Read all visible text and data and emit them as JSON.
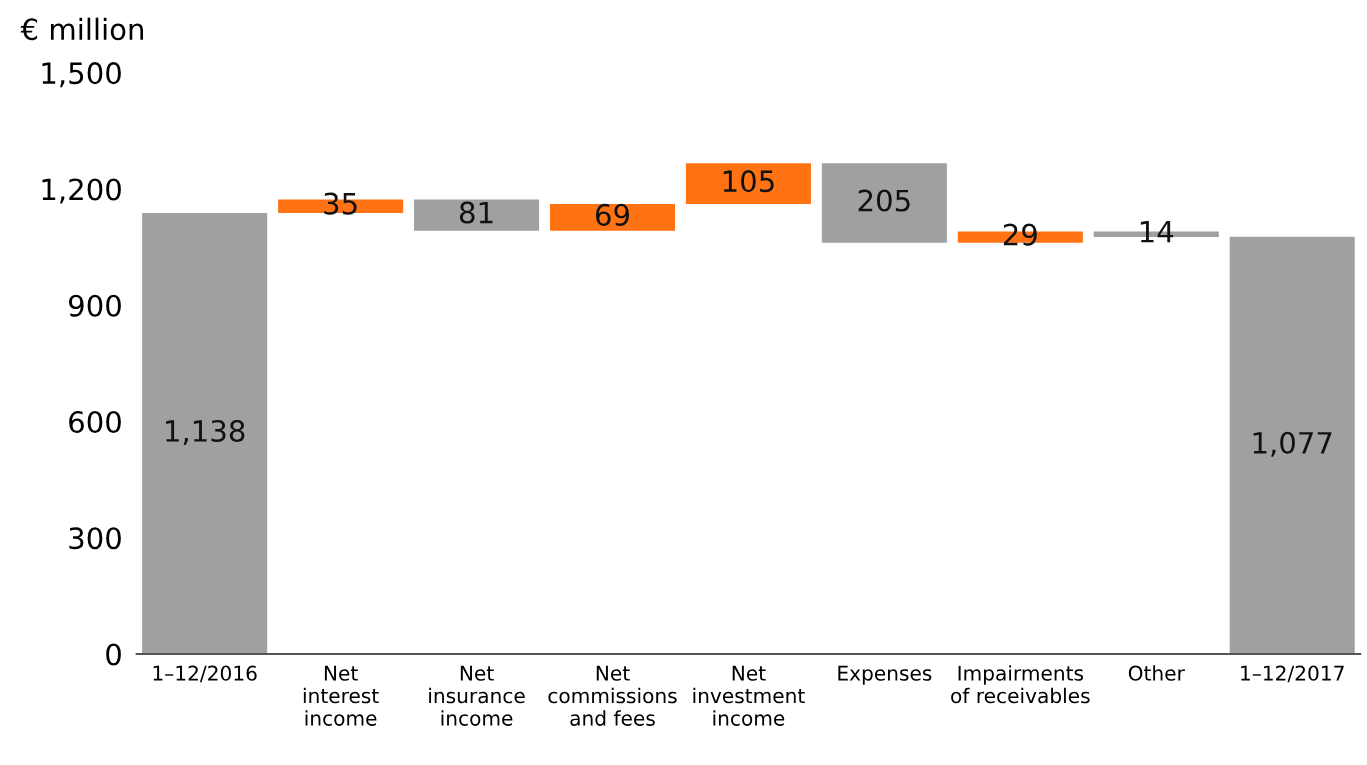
{
  "chart_data": {
    "type": "bar",
    "ylabel": "€ million",
    "categories": [
      "1–12/2016",
      "Net\ninterest\nincome",
      "Net\ninsurance\nincome",
      "Net\ncommissions\nand fees",
      "Net\ninvestment\nincome",
      "Expenses",
      "Impairments\nof receivables",
      "Other",
      "1–12/2017"
    ],
    "values": [
      1138,
      35,
      -81,
      69,
      105,
      -205,
      29,
      -14,
      1077
    ],
    "base": [
      0,
      1138,
      1173,
      1092,
      1161,
      1266,
      1061,
      1090,
      0
    ],
    "colors": [
      "#a0a0a0",
      "#ff7315",
      "#a0a0a0",
      "#ff7315",
      "#ff7315",
      "#a0a0a0",
      "#ff7315",
      "#a0a0a0",
      "#a0a0a0"
    ],
    "value_labels": [
      "1,138",
      "35",
      "81",
      "69",
      "105",
      "205",
      "29",
      "14",
      "1,077"
    ],
    "ylim": [
      0,
      1500
    ],
    "yticks": [
      0,
      300,
      600,
      900,
      {
        "value": 1200,
        "label": "1,200"
      },
      {
        "value": 1500,
        "label": "1,500"
      }
    ],
    "grid": false,
    "legend": false
  }
}
